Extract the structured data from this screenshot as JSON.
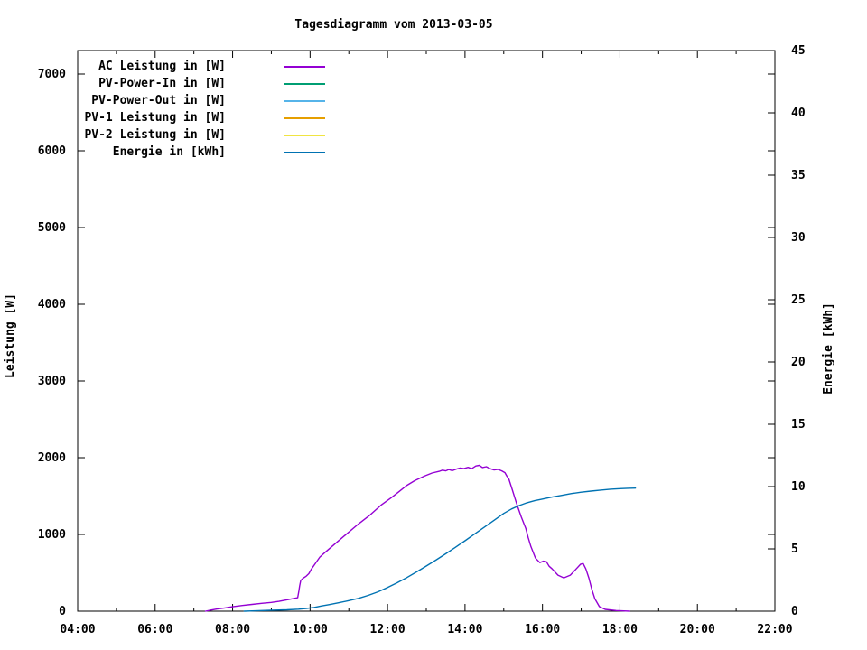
{
  "title": "Tagesdiagramm vom 2013-03-05",
  "chart_data": {
    "type": "line",
    "title": "Tagesdiagramm vom 2013-03-05",
    "grid": false,
    "legend_position": "top-left-inside",
    "x_axis": {
      "label": "",
      "range_hours": [
        4,
        22
      ],
      "tick_values": [
        4,
        6,
        8,
        10,
        12,
        14,
        16,
        18,
        20,
        22
      ],
      "tick_labels": [
        "04:00",
        "06:00",
        "08:00",
        "10:00",
        "12:00",
        "14:00",
        "16:00",
        "18:00",
        "20:00",
        "22:00"
      ],
      "minor_tick_values": [
        5,
        7,
        9,
        11,
        13,
        15,
        17,
        19,
        21
      ]
    },
    "y_left": {
      "label": "Leistung [W]",
      "range": [
        0,
        7000
      ],
      "tick_values": [
        0,
        1000,
        2000,
        3000,
        4000,
        5000,
        6000,
        7000
      ],
      "tick_labels": [
        "0",
        "1000",
        "2000",
        "3000",
        "4000",
        "5000",
        "6000",
        "7000"
      ]
    },
    "y_right": {
      "label": "Energie [kWh]",
      "range": [
        0,
        45
      ],
      "tick_values": [
        0,
        5,
        10,
        15,
        20,
        25,
        30,
        35,
        40,
        45
      ],
      "tick_labels": [
        "0",
        "5",
        "10",
        "15",
        "20",
        "25",
        "30",
        "35",
        "40",
        "45"
      ]
    },
    "series": [
      {
        "id": "ac-leistung",
        "name": "AC Leistung in [W]",
        "color": "#9400d3",
        "axis": "left",
        "points": [
          [
            7.3,
            0
          ],
          [
            7.45,
            15
          ],
          [
            7.6,
            28
          ],
          [
            7.8,
            42
          ],
          [
            8.0,
            58
          ],
          [
            8.25,
            74
          ],
          [
            8.5,
            88
          ],
          [
            8.75,
            102
          ],
          [
            9.0,
            114
          ],
          [
            9.2,
            128
          ],
          [
            9.4,
            148
          ],
          [
            9.55,
            162
          ],
          [
            9.68,
            175
          ],
          [
            9.71,
            260
          ],
          [
            9.73,
            330
          ],
          [
            9.76,
            400
          ],
          [
            9.82,
            430
          ],
          [
            9.9,
            455
          ],
          [
            9.97,
            490
          ],
          [
            10.03,
            545
          ],
          [
            10.12,
            610
          ],
          [
            10.25,
            705
          ],
          [
            10.38,
            762
          ],
          [
            10.62,
            867
          ],
          [
            10.92,
            996
          ],
          [
            11.25,
            1137
          ],
          [
            11.55,
            1254
          ],
          [
            11.85,
            1390
          ],
          [
            12.1,
            1480
          ],
          [
            12.3,
            1560
          ],
          [
            12.5,
            1640
          ],
          [
            12.7,
            1700
          ],
          [
            12.95,
            1760
          ],
          [
            13.15,
            1800
          ],
          [
            13.35,
            1825
          ],
          [
            13.42,
            1838
          ],
          [
            13.5,
            1828
          ],
          [
            13.58,
            1846
          ],
          [
            13.67,
            1832
          ],
          [
            13.78,
            1852
          ],
          [
            13.88,
            1866
          ],
          [
            13.97,
            1858
          ],
          [
            14.08,
            1874
          ],
          [
            14.17,
            1856
          ],
          [
            14.28,
            1892
          ],
          [
            14.37,
            1900
          ],
          [
            14.45,
            1872
          ],
          [
            14.55,
            1882
          ],
          [
            14.65,
            1856
          ],
          [
            14.75,
            1840
          ],
          [
            14.85,
            1848
          ],
          [
            14.95,
            1828
          ],
          [
            15.03,
            1805
          ],
          [
            15.08,
            1760
          ],
          [
            15.13,
            1723
          ],
          [
            15.22,
            1583
          ],
          [
            15.33,
            1407
          ],
          [
            15.45,
            1231
          ],
          [
            15.57,
            1078
          ],
          [
            15.63,
            961
          ],
          [
            15.7,
            844
          ],
          [
            15.82,
            692
          ],
          [
            15.93,
            633
          ],
          [
            16.02,
            652
          ],
          [
            16.1,
            645
          ],
          [
            16.17,
            586
          ],
          [
            16.25,
            551
          ],
          [
            16.4,
            469
          ],
          [
            16.55,
            434
          ],
          [
            16.72,
            469
          ],
          [
            16.87,
            551
          ],
          [
            16.98,
            610
          ],
          [
            17.05,
            621
          ],
          [
            17.12,
            551
          ],
          [
            17.2,
            430
          ],
          [
            17.27,
            293
          ],
          [
            17.35,
            164
          ],
          [
            17.47,
            59
          ],
          [
            17.62,
            23
          ],
          [
            17.9,
            8
          ],
          [
            18.1,
            4
          ],
          [
            18.25,
            0
          ]
        ]
      },
      {
        "id": "pv-power-in",
        "name": "PV-Power-In in [W]",
        "color": "#009e73",
        "axis": "left",
        "points": []
      },
      {
        "id": "pv-power-out",
        "name": "PV-Power-Out in [W]",
        "color": "#56b4e9",
        "axis": "left",
        "points": []
      },
      {
        "id": "pv1-leistung",
        "name": "PV-1 Leistung in [W]",
        "color": "#e69f00",
        "axis": "left",
        "points": []
      },
      {
        "id": "pv2-leistung",
        "name": "PV-2 Leistung in [W]",
        "color": "#f0e442",
        "axis": "left",
        "points": []
      },
      {
        "id": "energie",
        "name": "Energie in [kWh]",
        "color": "#0072b2",
        "axis": "right",
        "points": [
          [
            8.3,
            0.0
          ],
          [
            8.6,
            0.03
          ],
          [
            9.0,
            0.07
          ],
          [
            9.4,
            0.11
          ],
          [
            9.7,
            0.16
          ],
          [
            9.9,
            0.22
          ],
          [
            10.1,
            0.3
          ],
          [
            10.3,
            0.42
          ],
          [
            10.5,
            0.53
          ],
          [
            10.75,
            0.68
          ],
          [
            11.0,
            0.85
          ],
          [
            11.25,
            1.03
          ],
          [
            11.5,
            1.27
          ],
          [
            11.75,
            1.55
          ],
          [
            12.0,
            1.9
          ],
          [
            12.25,
            2.28
          ],
          [
            12.5,
            2.7
          ],
          [
            12.75,
            3.15
          ],
          [
            13.0,
            3.62
          ],
          [
            13.25,
            4.1
          ],
          [
            13.5,
            4.6
          ],
          [
            13.75,
            5.12
          ],
          [
            14.0,
            5.65
          ],
          [
            14.25,
            6.2
          ],
          [
            14.5,
            6.75
          ],
          [
            14.75,
            7.3
          ],
          [
            15.0,
            7.85
          ],
          [
            15.2,
            8.2
          ],
          [
            15.4,
            8.48
          ],
          [
            15.6,
            8.7
          ],
          [
            15.8,
            8.87
          ],
          [
            16.0,
            9.0
          ],
          [
            16.25,
            9.16
          ],
          [
            16.5,
            9.3
          ],
          [
            16.75,
            9.44
          ],
          [
            17.0,
            9.55
          ],
          [
            17.25,
            9.64
          ],
          [
            17.5,
            9.72
          ],
          [
            17.75,
            9.79
          ],
          [
            18.0,
            9.83
          ],
          [
            18.2,
            9.86
          ],
          [
            18.4,
            9.88
          ]
        ]
      }
    ]
  }
}
